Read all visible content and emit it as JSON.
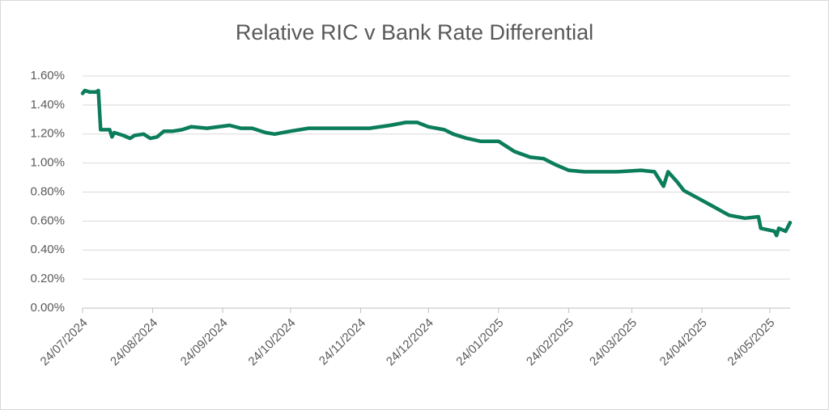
{
  "chart_data": {
    "type": "line",
    "title": "Relative RIC v Bank Rate Differential",
    "x": [
      "24/07/2024",
      "25/07/2024",
      "27/07/2024",
      "30/07/2024",
      "31/07/2024",
      "01/08/2024",
      "05/08/2024",
      "06/08/2024",
      "07/08/2024",
      "11/08/2024",
      "14/08/2024",
      "16/08/2024",
      "20/08/2024",
      "23/08/2024",
      "26/08/2024",
      "29/08/2024",
      "02/09/2024",
      "06/09/2024",
      "10/09/2024",
      "17/09/2024",
      "27/09/2024",
      "02/10/2024",
      "07/10/2024",
      "13/10/2024",
      "17/10/2024",
      "24/10/2024",
      "01/11/2024",
      "10/11/2024",
      "19/11/2024",
      "28/11/2024",
      "07/12/2024",
      "14/12/2024",
      "19/12/2024",
      "24/12/2024",
      "31/12/2024",
      "04/01/2025",
      "10/01/2025",
      "16/01/2025",
      "24/01/2025",
      "29/01/2025",
      "31/01/2025",
      "07/02/2025",
      "13/02/2025",
      "18/02/2025",
      "24/02/2025",
      "03/03/2025",
      "17/03/2025",
      "28/03/2025",
      "03/04/2025",
      "07/04/2025",
      "09/04/2025",
      "13/04/2025",
      "16/04/2025",
      "22/04/2025",
      "29/04/2025",
      "06/05/2025",
      "13/05/2025",
      "19/05/2025",
      "20/05/2025",
      "26/05/2025",
      "27/05/2025",
      "28/05/2025",
      "31/05/2025",
      "02/06/2025"
    ],
    "series": [
      {
        "name": "Relative RIC v Bank Rate Differential",
        "color": "#0b7d5b",
        "values": [
          1.48,
          1.5,
          1.49,
          1.49,
          1.5,
          1.23,
          1.23,
          1.18,
          1.21,
          1.19,
          1.17,
          1.19,
          1.2,
          1.17,
          1.18,
          1.22,
          1.22,
          1.23,
          1.25,
          1.24,
          1.26,
          1.24,
          1.24,
          1.21,
          1.2,
          1.22,
          1.24,
          1.24,
          1.24,
          1.24,
          1.26,
          1.28,
          1.28,
          1.25,
          1.23,
          1.2,
          1.17,
          1.15,
          1.15,
          1.1,
          1.08,
          1.04,
          1.03,
          0.99,
          0.95,
          0.94,
          0.94,
          0.95,
          0.94,
          0.84,
          0.94,
          0.87,
          0.81,
          0.76,
          0.7,
          0.64,
          0.62,
          0.63,
          0.55,
          0.53,
          0.5,
          0.55,
          0.53,
          0.59
        ]
      }
    ],
    "xlim": [
      "24/07/2024",
      "02/06/2025"
    ],
    "xticks": [
      "24/07/2024",
      "24/08/2024",
      "24/09/2024",
      "24/10/2024",
      "24/11/2024",
      "24/12/2024",
      "24/01/2025",
      "24/02/2025",
      "24/03/2025",
      "24/04/2025",
      "24/05/2025"
    ],
    "ylim": [
      0,
      1.6
    ],
    "yticks": [
      {
        "value": 0,
        "label": "0.00%"
      },
      {
        "value": 0.2,
        "label": "0.20%"
      },
      {
        "value": 0.4,
        "label": "0.40%"
      },
      {
        "value": 0.6,
        "label": "0.60%"
      },
      {
        "value": 0.8,
        "label": "0.80%"
      },
      {
        "value": 1.0,
        "label": "1.00%"
      },
      {
        "value": 1.2,
        "label": "1.20%"
      },
      {
        "value": 1.4,
        "label": "1.40%"
      },
      {
        "value": 1.6,
        "label": "1.60%"
      }
    ],
    "grid": true
  }
}
